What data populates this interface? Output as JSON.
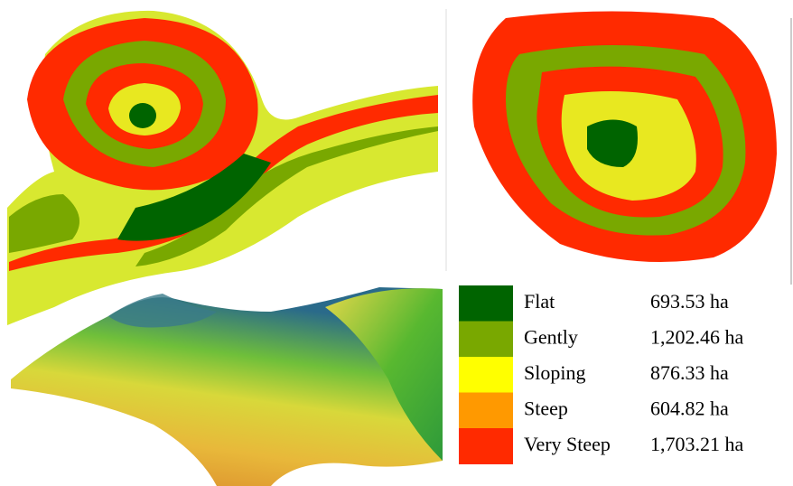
{
  "legend": {
    "items": [
      {
        "label": "Flat",
        "area": "693.53 ha",
        "color": "#006400"
      },
      {
        "label": "Gently",
        "area": "1,202.46 ha",
        "color": "#79a800"
      },
      {
        "label": "Sloping",
        "area": "876.33 ha",
        "color": "#ffff00"
      },
      {
        "label": "Steep",
        "area": "604.82 ha",
        "color": "#ff9900"
      },
      {
        "label": "Very Steep",
        "area": "1,703.21 ha",
        "color": "#ff2a00"
      }
    ]
  }
}
